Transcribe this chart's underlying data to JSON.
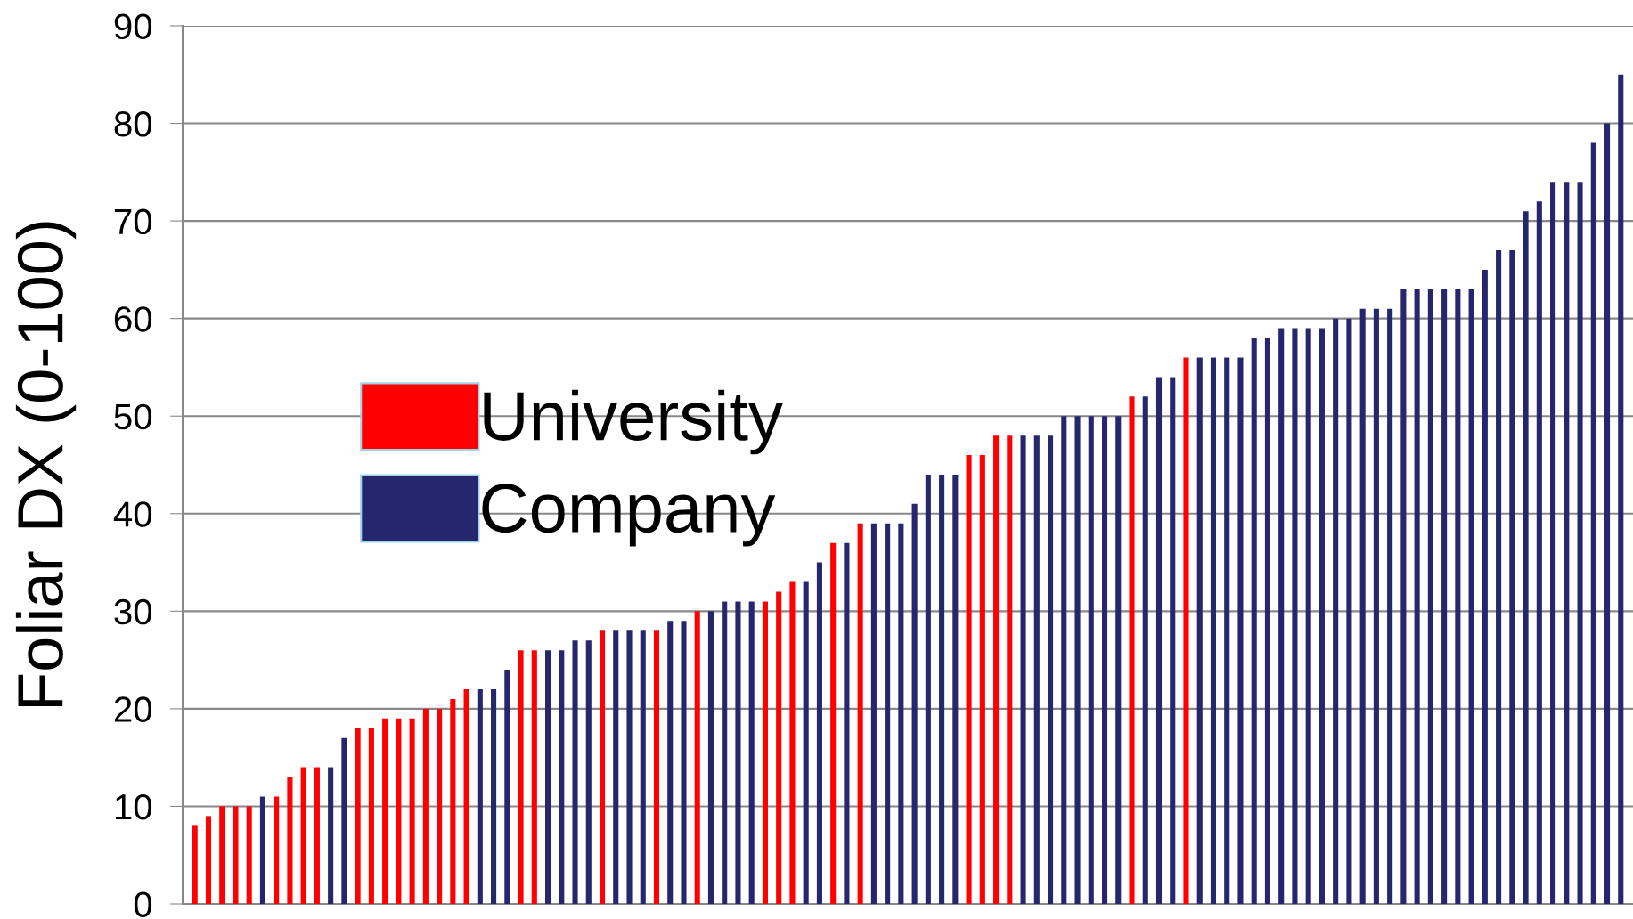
{
  "chart_data": {
    "type": "bar",
    "ylabel": "Foliar DX (0-100)",
    "categories": [
      null,
      null,
      null,
      null,
      null,
      null,
      null,
      null,
      null,
      null,
      null,
      null,
      null,
      null,
      null,
      null,
      null,
      null,
      null,
      null,
      null,
      null,
      null,
      null,
      null,
      null,
      null,
      null,
      null,
      null,
      null,
      null,
      null,
      null,
      null,
      null,
      null,
      null,
      null,
      null,
      null,
      null,
      null,
      null,
      null,
      null,
      null,
      null,
      null,
      null,
      null,
      null,
      null,
      null,
      null,
      null,
      null,
      null,
      null,
      null,
      null,
      null,
      null,
      null,
      null,
      null,
      null,
      null,
      null,
      null,
      null,
      null,
      null,
      null,
      null,
      null,
      null,
      null,
      null,
      null,
      null,
      null,
      null,
      null,
      null,
      null,
      null,
      null,
      null,
      null,
      null,
      null,
      null,
      null,
      null,
      null,
      null,
      null,
      null,
      null,
      null,
      null,
      null,
      null,
      null,
      null
    ],
    "series": [
      {
        "name": "University",
        "color": "#ff0000",
        "values": [
          8,
          9,
          10,
          10,
          10,
          null,
          11,
          13,
          14,
          14,
          null,
          null,
          18,
          18,
          19,
          19,
          19,
          20,
          20,
          21,
          22,
          null,
          null,
          null,
          26,
          26,
          null,
          null,
          null,
          null,
          28,
          null,
          null,
          null,
          28,
          null,
          null,
          30,
          null,
          null,
          null,
          null,
          31,
          32,
          33,
          null,
          null,
          37,
          null,
          39,
          null,
          null,
          null,
          null,
          null,
          null,
          null,
          46,
          46,
          48,
          48,
          null,
          null,
          null,
          null,
          null,
          null,
          null,
          null,
          52,
          null,
          null,
          null,
          56,
          null,
          null,
          null,
          null,
          null,
          null,
          null,
          null,
          null,
          null,
          null,
          null,
          null,
          null,
          null,
          null,
          null,
          null,
          null,
          null,
          null,
          null,
          null,
          null,
          null,
          null,
          null,
          null,
          null,
          null,
          null,
          null
        ]
      },
      {
        "name": "Company",
        "color": "#26266e",
        "values": [
          null,
          null,
          null,
          null,
          null,
          11,
          null,
          null,
          null,
          null,
          14,
          17,
          null,
          null,
          null,
          null,
          null,
          null,
          null,
          null,
          null,
          22,
          22,
          24,
          null,
          null,
          26,
          26,
          27,
          27,
          null,
          28,
          28,
          28,
          null,
          29,
          29,
          null,
          30,
          31,
          31,
          31,
          null,
          null,
          null,
          33,
          35,
          null,
          37,
          null,
          39,
          39,
          39,
          41,
          44,
          44,
          44,
          null,
          null,
          null,
          null,
          48,
          48,
          48,
          50,
          50,
          50,
          50,
          50,
          null,
          52,
          54,
          54,
          null,
          56,
          56,
          56,
          56,
          58,
          58,
          59,
          59,
          59,
          59,
          60,
          60,
          61,
          61,
          61,
          63,
          63,
          63,
          63,
          63,
          63,
          65,
          67,
          67,
          71,
          72,
          74,
          74,
          74,
          78,
          80,
          85
        ]
      }
    ],
    "ylim": [
      0,
      90
    ],
    "yticks": [
      0,
      10,
      20,
      30,
      40,
      50,
      60,
      70,
      80,
      90
    ],
    "grid": "y",
    "legend": "center left",
    "tick_labels": "y"
  }
}
